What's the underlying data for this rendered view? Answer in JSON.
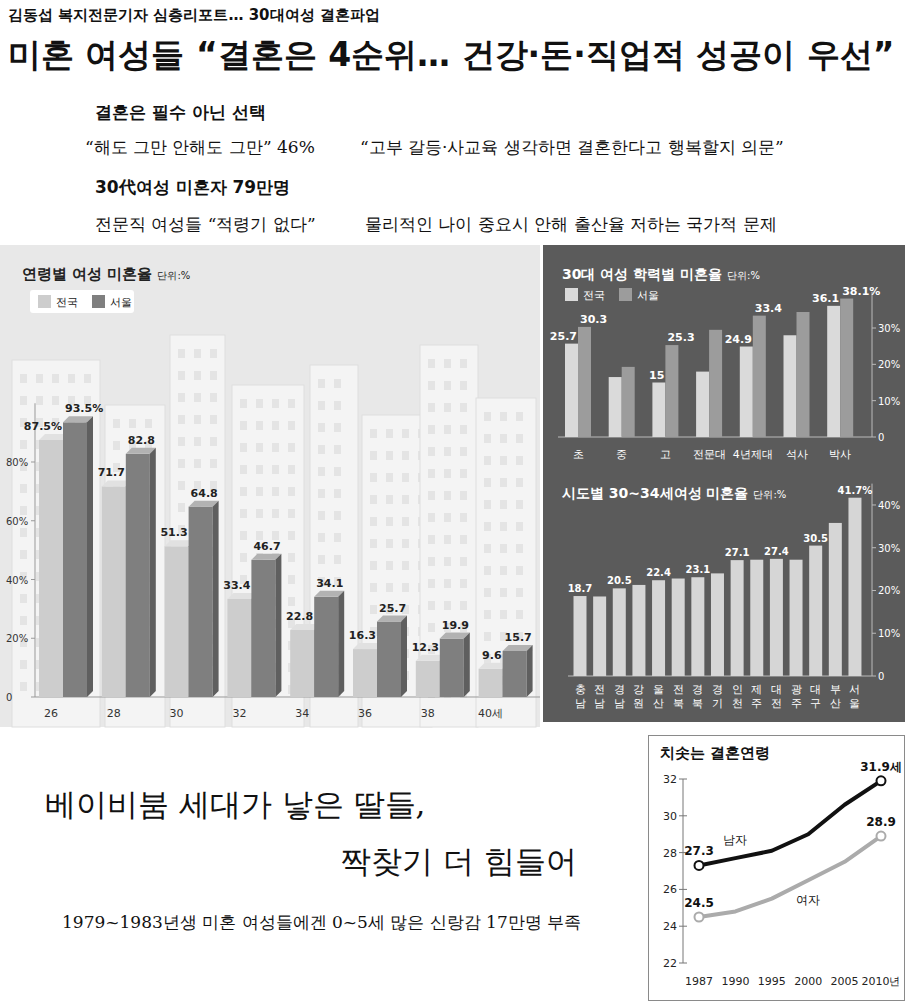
{
  "article": {
    "kicker": "김동섭 복지전문기자 심층리포트… 30대여성 결혼파업",
    "headline": "미혼 여성들 “결혼은 4순위… 건강·돈·직업적 성공이 우선”",
    "subheads": [
      {
        "title": "결혼은 필수 아닌 선택",
        "lines": [
          "“해도 그만 안해도 그만” 46%",
          "“고부 갈등·사교육 생각하면 결혼한다고 행복할지 의문”"
        ]
      },
      {
        "title": "30代여성 미혼자 79만명",
        "lines": [
          "전문직 여성들 “적령기 없다”",
          "물리적인 나이 중요시 안해  출산율 저하는 국가적 문제"
        ]
      }
    ],
    "feature": {
      "headline_lines": [
        "베이비붐 세대가 낳은 딸들,",
        "짝찾기 더 힘들어"
      ],
      "subtitle": "1979~1983년생 미혼 여성들에겐  0~5세 많은 신랑감 17만명 부족"
    }
  },
  "chart_data": [
    {
      "type": "bar",
      "title": "연령별 여성 미혼율",
      "subtitle": "단위:%",
      "categories": [
        "26",
        "28",
        "30",
        "32",
        "34",
        "36",
        "38",
        "40세"
      ],
      "series": [
        {
          "name": "전국",
          "color": "#cdcdcd",
          "values": [
            87.5,
            71.7,
            51.3,
            33.4,
            22.8,
            16.3,
            12.3,
            9.6
          ],
          "value_labels": [
            "87.5%",
            "71.7",
            "51.3",
            "33.4",
            "22.8",
            "16.3",
            "12.3",
            "9.6"
          ]
        },
        {
          "name": "서울",
          "color": "#7f7f7f",
          "values": [
            93.5,
            82.8,
            64.8,
            46.7,
            34.1,
            25.7,
            19.9,
            15.7
          ],
          "value_labels": [
            "93.5%",
            "82.8",
            "64.8",
            "46.7",
            "34.1",
            "25.7",
            "19.9",
            "15.7"
          ]
        }
      ],
      "ylim": [
        0,
        100
      ],
      "yticks": [
        0,
        {
          "value": 20,
          "label": "20%"
        },
        {
          "value": 40,
          "label": "40%"
        },
        {
          "value": 60,
          "label": "60%"
        },
        {
          "value": 80,
          "label": "80%"
        }
      ],
      "grid": false,
      "legend": "top-left",
      "data_labels": true
    },
    {
      "type": "bar",
      "title": "30대 여성 학력별 미혼율",
      "subtitle": "단위:%",
      "categories": [
        "초",
        "중",
        "고",
        "전문대",
        "4년제대",
        "석사",
        "박사"
      ],
      "series": [
        {
          "name": "전국",
          "color": "#dadada",
          "values": [
            25.7,
            16.5,
            15,
            18,
            24.9,
            28,
            36.1
          ],
          "value_labels": [
            "25.7",
            null,
            "15",
            null,
            "24.9",
            null,
            "36.1"
          ]
        },
        {
          "name": "서울",
          "color": "#9c9c9c",
          "values": [
            30.3,
            19.3,
            25.3,
            29.5,
            33.4,
            34.4,
            38.1
          ],
          "value_labels": [
            "30.3",
            null,
            "25.3",
            null,
            "33.4",
            null,
            "38.1%"
          ]
        }
      ],
      "ylim": [
        0,
        40
      ],
      "yticks": [
        0,
        {
          "value": 10,
          "label": "10%"
        },
        {
          "value": 20,
          "label": "20%"
        },
        {
          "value": 30,
          "label": "30%"
        }
      ],
      "grid": false,
      "legend": "top-left",
      "data_labels": true
    },
    {
      "type": "bar",
      "title": "시도별 30~34세여성 미혼율",
      "subtitle": "단위:%",
      "categories": [
        "충남",
        "전남",
        "경남",
        "강원",
        "울산",
        "전북",
        "경북",
        "경기",
        "인천",
        "제주",
        "대전",
        "광주",
        "대구",
        "부산",
        "서울"
      ],
      "values": [
        18.7,
        18.6,
        20.5,
        21.3,
        22.4,
        22.8,
        23.1,
        24,
        27.1,
        27.2,
        27.4,
        27.2,
        30.5,
        35.8,
        41.7
      ],
      "value_labels": [
        "18.7",
        null,
        "20.5",
        null,
        "22.4",
        null,
        "23.1",
        null,
        "27.1",
        null,
        "27.4",
        null,
        "30.5",
        null,
        "41.7%"
      ],
      "color": "#d6d6d6",
      "ylim": [
        0,
        45
      ],
      "yticks": [
        0,
        {
          "value": 10,
          "label": "10%"
        },
        {
          "value": 20,
          "label": "20%"
        },
        {
          "value": 30,
          "label": "30%"
        },
        {
          "value": 40,
          "label": "40%"
        }
      ],
      "grid": false,
      "data_labels": true
    },
    {
      "type": "line",
      "title": "치솟는 결혼연령",
      "categories": [
        "1987",
        "1990",
        "1995",
        "2000",
        "2005",
        "2010년"
      ],
      "series": [
        {
          "name": "남자",
          "color": "#111111",
          "marker": "circle",
          "values": [
            27.3,
            27.7,
            28.1,
            29.0,
            30.6,
            31.9
          ],
          "value_labels": [
            "27.3",
            null,
            null,
            null,
            null,
            "31.9세"
          ]
        },
        {
          "name": "여자",
          "color": "#ababab",
          "marker": "circle",
          "values": [
            24.5,
            24.8,
            25.5,
            26.5,
            27.5,
            28.9
          ],
          "value_labels": [
            "24.5",
            null,
            null,
            null,
            null,
            "28.9"
          ]
        }
      ],
      "ylim": [
        22,
        32
      ],
      "yticks": [
        22,
        24,
        26,
        28,
        30,
        32
      ],
      "grid": false,
      "data_labels": true
    }
  ]
}
